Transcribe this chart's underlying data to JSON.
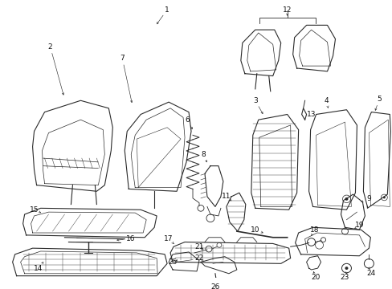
{
  "bg_color": "#ffffff",
  "line_color": "#2a2a2a",
  "label_color": "#111111",
  "label_fontsize": 6.5,
  "figsize": [
    4.89,
    3.6
  ],
  "dpi": 100
}
